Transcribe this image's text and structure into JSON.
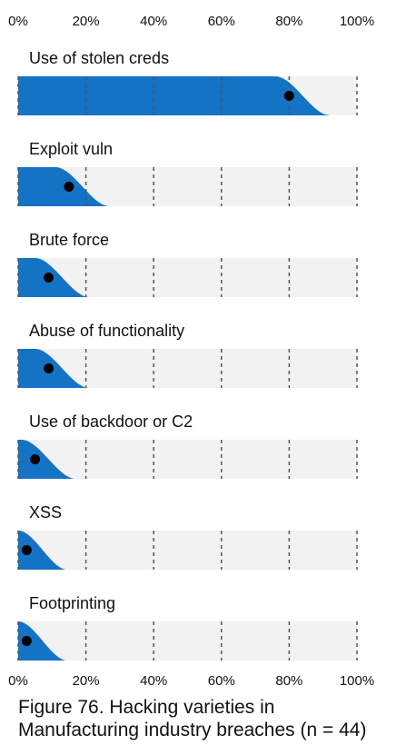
{
  "chart_data": {
    "type": "area",
    "title": "Figure 76. Hacking varieties in Manufacturing industry breaches (n = 44)",
    "xlim": [
      0,
      100
    ],
    "x_ticks": [
      "0%",
      "20%",
      "40%",
      "60%",
      "80%",
      "100%"
    ],
    "grid": "dashed vertical lines at 20% intervals",
    "colors": {
      "area": "#1573c6",
      "track": "#f2f2f2",
      "point": "#000000",
      "gridline": "#555555"
    },
    "categories": [
      "Use of stolen creds",
      "Exploit vuln",
      "Brute force",
      "Abuse of functionality",
      "Use of backdoor or C2",
      "XSS",
      "Footprinting"
    ],
    "values": [
      80,
      15,
      9,
      9,
      5,
      2.5,
      2.5
    ]
  }
}
